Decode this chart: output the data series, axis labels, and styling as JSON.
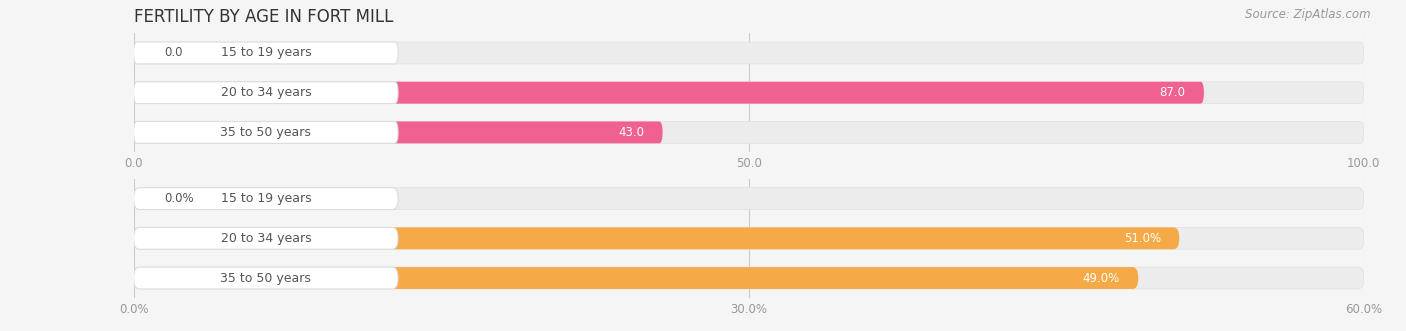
{
  "title": "FERTILITY BY AGE IN FORT MILL",
  "source": "Source: ZipAtlas.com",
  "top_chart": {
    "categories": [
      "15 to 19 years",
      "20 to 34 years",
      "35 to 50 years"
    ],
    "values": [
      0.0,
      87.0,
      43.0
    ],
    "xlim": [
      0,
      100
    ],
    "xticks": [
      0.0,
      50.0,
      100.0
    ],
    "xtick_labels": [
      "0.0",
      "50.0",
      "100.0"
    ],
    "bar_color": "#f06090",
    "bar_bg_color": "#ececec",
    "label_color": "#555555",
    "value_color_inside": "#ffffff",
    "value_color_outside": "#555555"
  },
  "bottom_chart": {
    "categories": [
      "15 to 19 years",
      "20 to 34 years",
      "35 to 50 years"
    ],
    "values": [
      0.0,
      51.0,
      49.0
    ],
    "xlim": [
      0,
      60
    ],
    "xticks": [
      0.0,
      30.0,
      60.0
    ],
    "xtick_labels": [
      "0.0%",
      "30.0%",
      "60.0%"
    ],
    "bar_color": "#f5a947",
    "bar_bg_color": "#ececec",
    "label_color": "#555555",
    "value_color_inside": "#ffffff",
    "value_color_outside": "#555555"
  },
  "background_color": "#f5f5f5",
  "bar_height": 0.55,
  "label_box_color": "#ffffff",
  "label_box_edge_color": "#dddddd",
  "title_fontsize": 12,
  "source_fontsize": 8.5,
  "tick_fontsize": 8.5,
  "label_fontsize": 9,
  "value_fontsize": 8.5
}
